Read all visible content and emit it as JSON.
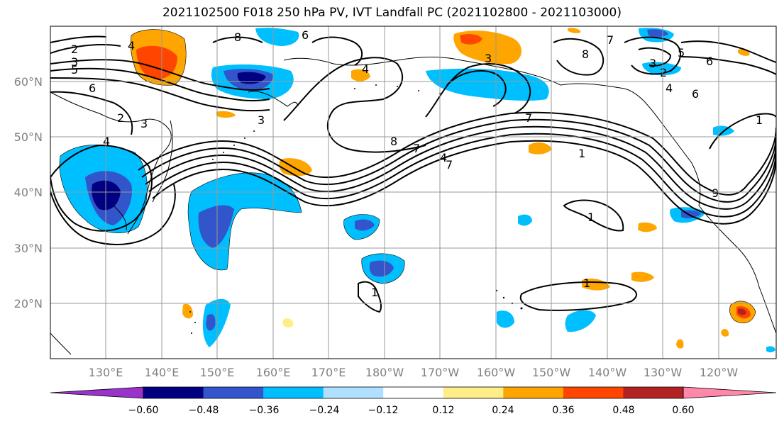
{
  "title": "2021102500 F018 250 hPa PV, IVT Landfall PC (2021102800 - 2021103000)",
  "lat_labels": [
    "60°N",
    "50°N",
    "40°N",
    "30°N",
    "20°N"
  ],
  "lon_labels": [
    "130°E",
    "140°E",
    "150°E",
    "160°E",
    "170°E",
    "180°W",
    "170°W",
    "160°W",
    "150°W",
    "140°W",
    "130°W",
    "120°W"
  ],
  "colorbar": {
    "ticks": [
      "−0.60",
      "−0.48",
      "−0.36",
      "−0.24",
      "−0.12",
      "0.12",
      "0.24",
      "0.36",
      "0.48",
      "0.60"
    ],
    "colors": [
      "#9933cc",
      "#000080",
      "#3355cc",
      "#00bfff",
      "#b0e0ff",
      "#ffffff",
      "#ffee88",
      "#ffa500",
      "#ff4500",
      "#b22222",
      "#ff88aa"
    ]
  },
  "contour_labels": [
    "2",
    "3",
    "4",
    "6",
    "8",
    "5",
    "7",
    "1",
    "9"
  ],
  "colors": {
    "land_line": "#000000",
    "grid": "#999999",
    "contour": "#000000",
    "label_text": "#808080"
  }
}
